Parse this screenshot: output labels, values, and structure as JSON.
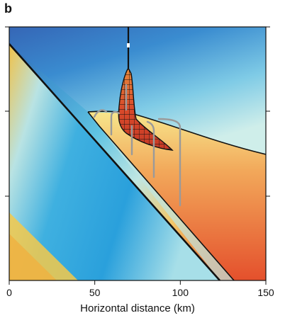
{
  "panel_label": "b",
  "x_axis": {
    "title": "Horizontal distance (km)",
    "ticks": [
      {
        "value": 0,
        "label": "0"
      },
      {
        "value": 50,
        "label": "50"
      },
      {
        "value": 100,
        "label": "100"
      },
      {
        "value": 150,
        "label": "150"
      }
    ],
    "range": [
      0,
      150
    ]
  }
}
